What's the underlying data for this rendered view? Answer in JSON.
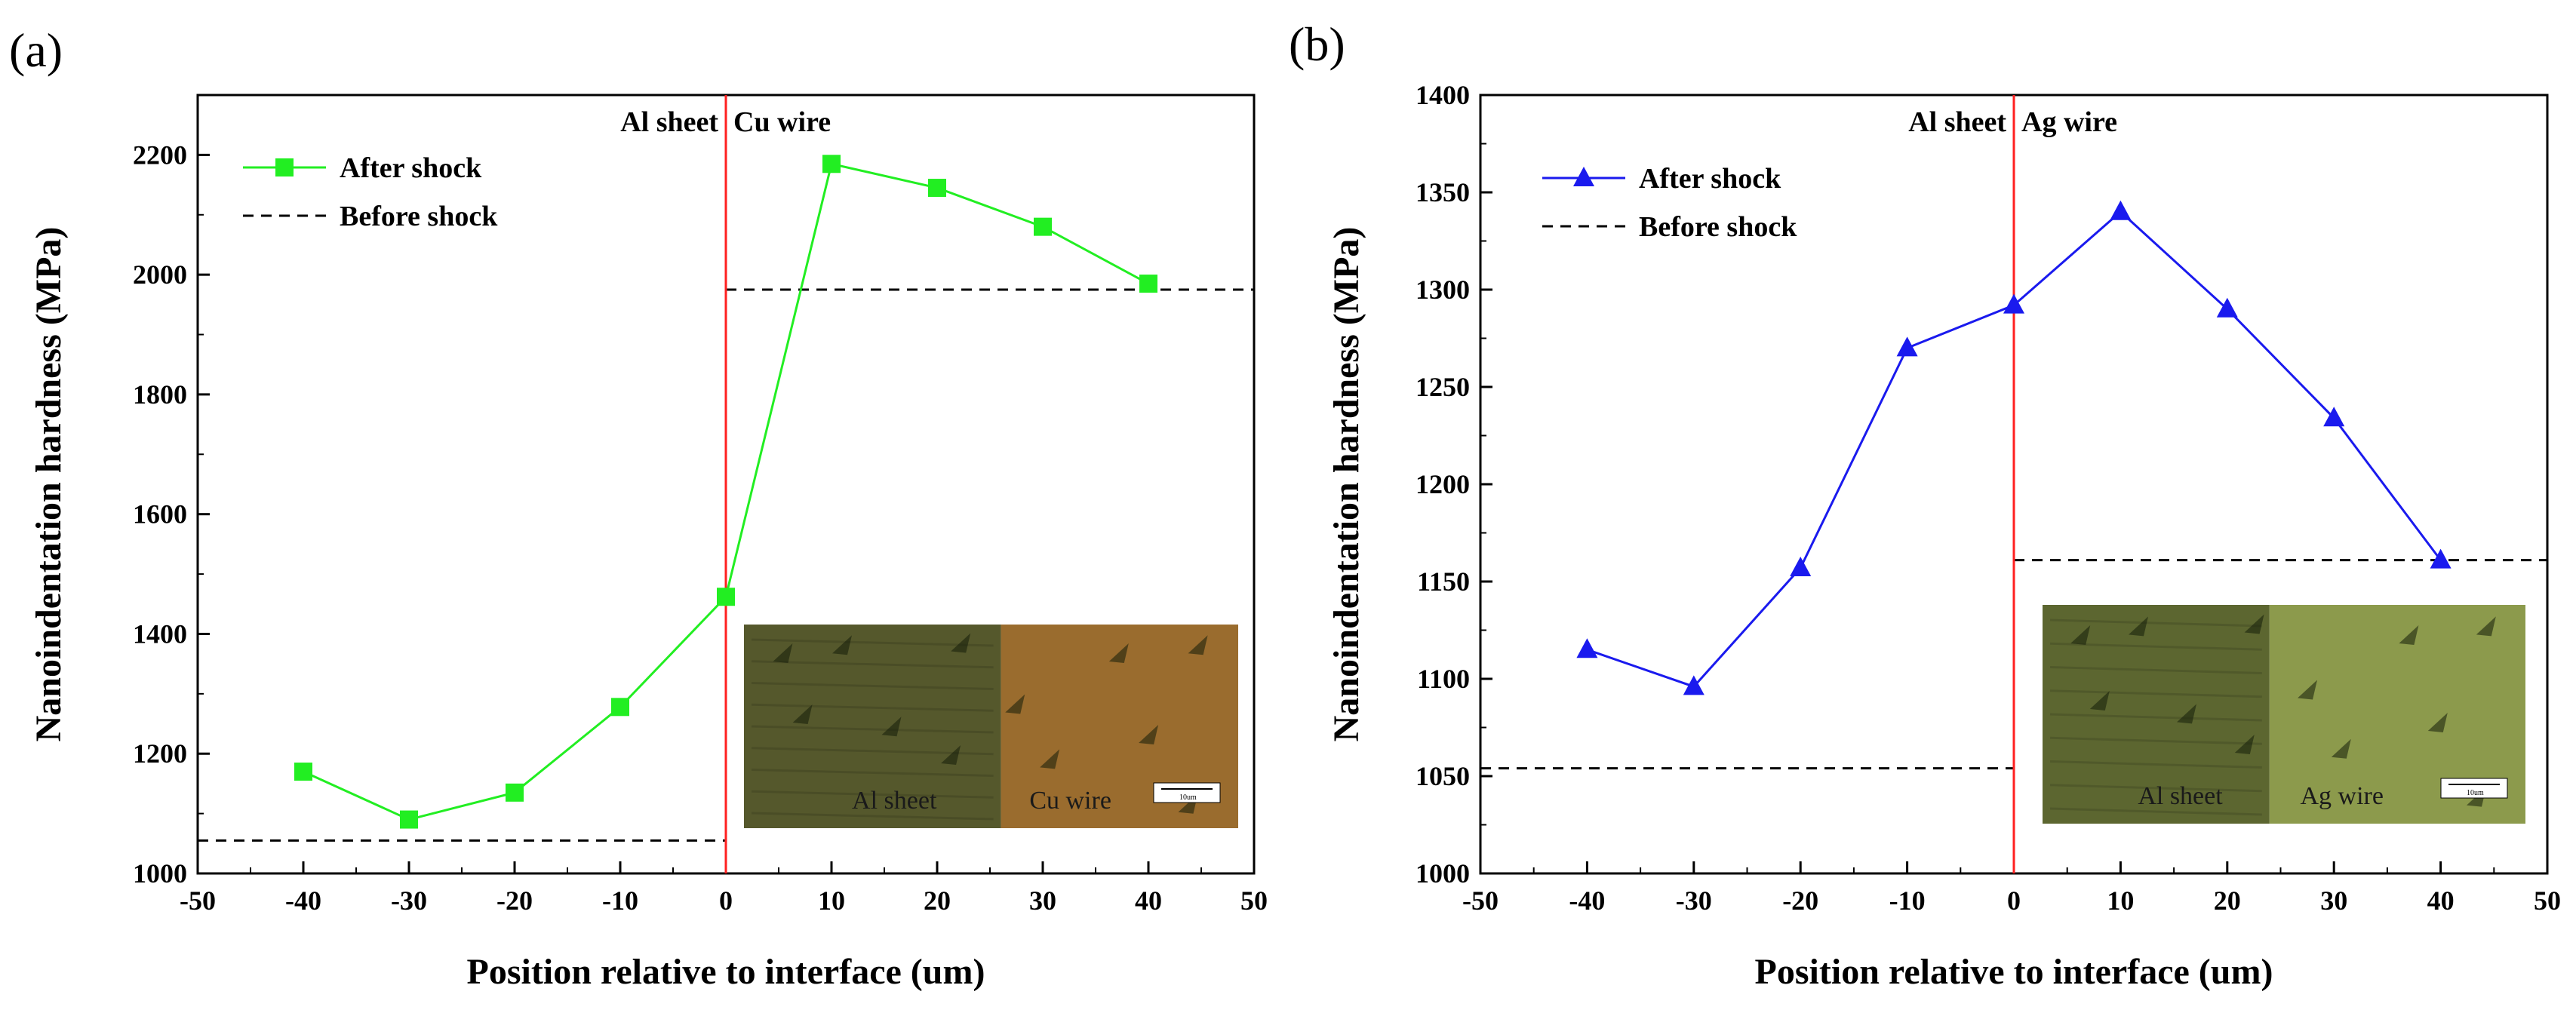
{
  "chart_data": [
    {
      "type": "line",
      "panel_label": "(a)",
      "xlabel": "Position relative to interface (um)",
      "ylabel": "Nanoindentation hardness (MPa)",
      "xlim": [
        -50,
        50
      ],
      "ylim": [
        1000,
        2300
      ],
      "x_ticks": [
        -50,
        -40,
        -30,
        -20,
        -10,
        0,
        10,
        20,
        30,
        40,
        50
      ],
      "y_ticks": [
        1000,
        1200,
        1400,
        1600,
        1800,
        2000,
        2200
      ],
      "series": [
        {
          "name": "After shock",
          "marker": "square",
          "color": "#22ee22",
          "x": [
            -40,
            -30,
            -20,
            -10,
            0,
            10,
            20,
            30,
            40
          ],
          "y": [
            1170,
            1090,
            1135,
            1278,
            1462,
            2185,
            2145,
            2080,
            1985
          ]
        }
      ],
      "reference_lines": [
        {
          "name": "Before shock",
          "style": "dashed",
          "color": "#000000",
          "segments": [
            {
              "x": [
                -50,
                0
              ],
              "y": 1055
            },
            {
              "x": [
                0,
                50
              ],
              "y": 1975
            }
          ]
        }
      ],
      "interface": {
        "x": 0,
        "color": "#ff2020",
        "left_label": "Al sheet",
        "right_label": "Cu wire"
      },
      "legend": {
        "position": "top-left",
        "entries": [
          "After shock",
          "Before shock"
        ]
      },
      "inset": {
        "left_label": "Al sheet",
        "right_label": "Cu wire",
        "scale_label": "10um",
        "left_color": "#55582c",
        "right_color": "#9a6c2e"
      }
    },
    {
      "type": "line",
      "panel_label": "(b)",
      "xlabel": "Position relative to interface (um)",
      "ylabel": "Nanoindentation hardness (MPa)",
      "xlim": [
        -50,
        50
      ],
      "ylim": [
        1000,
        1400
      ],
      "x_ticks": [
        -50,
        -40,
        -30,
        -20,
        -10,
        0,
        10,
        20,
        30,
        40,
        50
      ],
      "y_ticks": [
        1000,
        1050,
        1100,
        1150,
        1200,
        1250,
        1300,
        1350,
        1400
      ],
      "series": [
        {
          "name": "After shock",
          "marker": "triangle",
          "color": "#1a1aee",
          "x": [
            -40,
            -30,
            -20,
            -10,
            0,
            10,
            20,
            30,
            40
          ],
          "y": [
            1115,
            1096,
            1157,
            1270,
            1292,
            1340,
            1290,
            1234,
            1161
          ]
        }
      ],
      "reference_lines": [
        {
          "name": "Before shock",
          "style": "dashed",
          "color": "#000000",
          "segments": [
            {
              "x": [
                -50,
                0
              ],
              "y": 1054
            },
            {
              "x": [
                0,
                50
              ],
              "y": 1161
            }
          ]
        }
      ],
      "interface": {
        "x": 0,
        "color": "#ff2020",
        "left_label": "Al sheet",
        "right_label": "Ag wire"
      },
      "legend": {
        "position": "top-left",
        "entries": [
          "After shock",
          "Before shock"
        ]
      },
      "inset": {
        "left_label": "Al sheet",
        "right_label": "Ag wire",
        "scale_label": "10um",
        "left_color": "#5c6630",
        "right_color": "#8c9a4c"
      }
    }
  ]
}
